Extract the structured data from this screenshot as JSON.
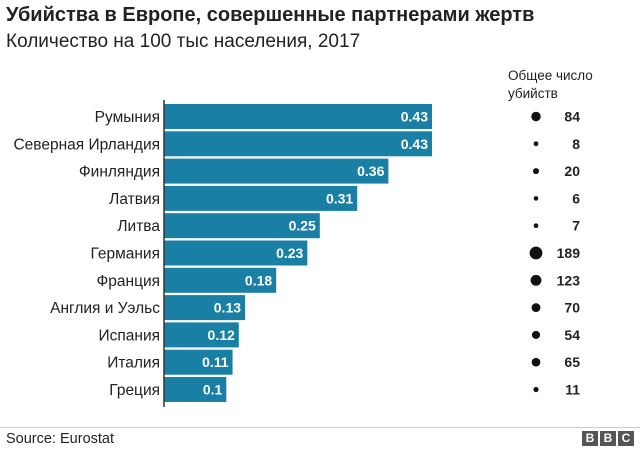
{
  "header": {
    "title": "Убийства в Европе, совершенные партнерами жертв",
    "subtitle": "Количество на 100 тыс населения, 2017"
  },
  "chart_data": {
    "type": "bar",
    "orientation": "horizontal",
    "title": "Убийства в Европе, совершенные партнерами жертв",
    "subtitle": "Количество на 100 тыс населения, 2017",
    "categories": [
      "Румыния",
      "Северная Ирландия",
      "Финляндия",
      "Латвия",
      "Литва",
      "Германия",
      "Франция",
      "Англия и Уэльс",
      "Испания",
      "Италия",
      "Греция"
    ],
    "values": [
      0.43,
      0.43,
      0.36,
      0.31,
      0.25,
      0.23,
      0.18,
      0.13,
      0.12,
      0.11,
      0.1
    ],
    "value_labels": [
      "0.43",
      "0.43",
      "0.36",
      "0.31",
      "0.25",
      "0.23",
      "0.18",
      "0.13",
      "0.12",
      "0.11",
      "0.1"
    ],
    "total_header": [
      "Общее число",
      "убийств"
    ],
    "totals": [
      84,
      8,
      20,
      6,
      7,
      189,
      123,
      70,
      54,
      65,
      11
    ],
    "bar_color": "#1a7fa5",
    "dot_color": "#111111",
    "xlim": [
      0,
      0.43
    ]
  },
  "footer": {
    "source": "Source: Eurostat",
    "logo_letters": [
      "B",
      "B",
      "C"
    ]
  }
}
